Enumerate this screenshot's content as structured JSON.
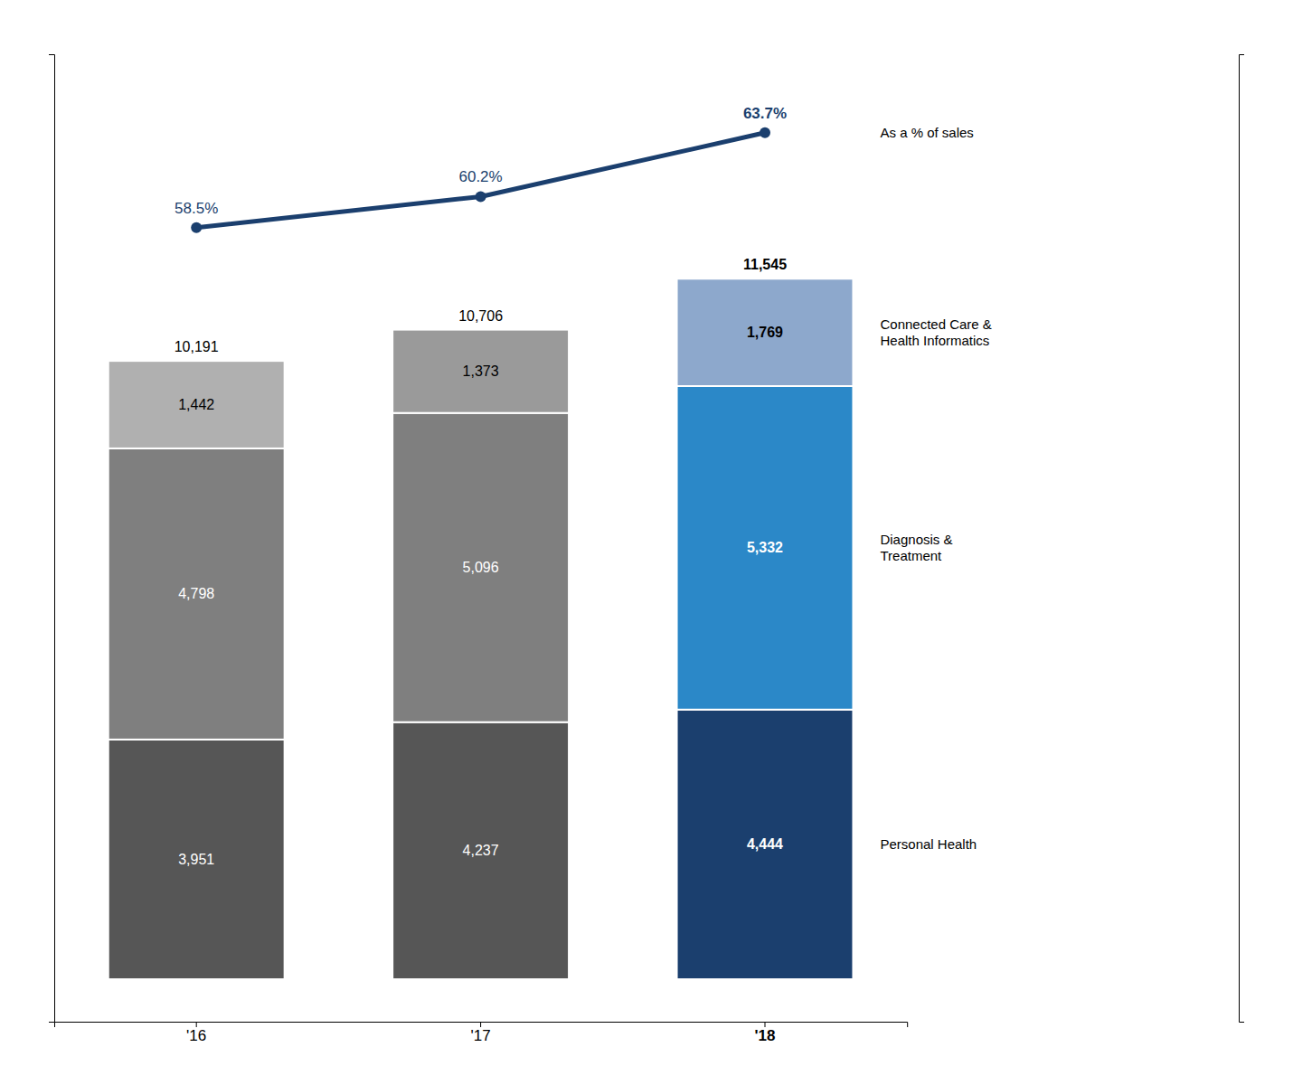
{
  "chart_data": {
    "type": "bar",
    "stacked": true,
    "data_labels": true,
    "tick_labels": "x",
    "grid": false,
    "categories": [
      "'16",
      "'17",
      "'18"
    ],
    "series": [
      {
        "name": "Personal Health",
        "colors": [
          "#565656",
          "#565656",
          "#1b3f6e"
        ],
        "values": [
          3951,
          4237,
          4444
        ],
        "value_labels": [
          "3,951",
          "4,237",
          "4,444"
        ]
      },
      {
        "name": "Diagnosis &\nTreatment",
        "colors": [
          "#7f7f7f",
          "#7f7f7f",
          "#2b88c8"
        ],
        "values": [
          4798,
          5096,
          5332
        ],
        "value_labels": [
          "4,798",
          "5,096",
          "5,332"
        ]
      },
      {
        "name": "Connected Care &\nHealth Informatics",
        "colors": [
          "#b0b0b0",
          "#9a9a9a",
          "#8da8cc"
        ],
        "values": [
          1442,
          1373,
          1769
        ],
        "value_labels": [
          "1,442",
          "1,373",
          "1,769"
        ]
      },
      {
        "name": "As a % of sales",
        "type": "line",
        "axis": "y2",
        "color": "#1b3f6e",
        "marker": "circle",
        "values": [
          58.5,
          60.2,
          63.7
        ],
        "value_labels": [
          "58.5%",
          "60.2%",
          "63.7%"
        ]
      }
    ],
    "totals": {
      "values": [
        10191,
        10706,
        11545
      ],
      "value_labels": [
        "10,191",
        "10,706",
        "11,545"
      ]
    },
    "ylim": [
      -700,
      15245
    ],
    "y2lim": [
      15,
      68
    ]
  }
}
